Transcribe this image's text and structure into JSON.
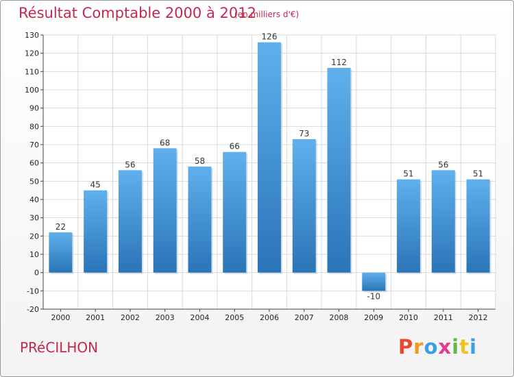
{
  "chart_data": {
    "type": "bar",
    "title": "Résultat Comptable 2000 à 2012",
    "subtitle": "(en milliers d'€)",
    "categories": [
      "2000",
      "2001",
      "2002",
      "2003",
      "2004",
      "2005",
      "2006",
      "2007",
      "2008",
      "2009",
      "2010",
      "2011",
      "2012"
    ],
    "values": [
      22,
      45,
      56,
      68,
      58,
      66,
      126,
      73,
      112,
      -10,
      51,
      56,
      51
    ],
    "value_labels": [
      "22",
      "45",
      "56",
      "68",
      "58",
      "66",
      "126",
      "73",
      "112",
      "-10",
      "51",
      "56",
      "51"
    ],
    "ylim": [
      -20,
      130
    ],
    "yticks": [
      -20,
      -10,
      0,
      10,
      20,
      30,
      40,
      50,
      60,
      70,
      80,
      90,
      100,
      110,
      120,
      130
    ],
    "grid": true,
    "xlabel": "",
    "ylabel": ""
  },
  "footer": {
    "place": "PRéCILHON",
    "brand_letters": [
      "P",
      "r",
      "o",
      "x",
      "i",
      "t",
      "i"
    ]
  },
  "colors": {
    "title": "#c4284f",
    "bar_top": "#5fb0ec",
    "bar_bottom": "#2a74b8",
    "grid": "#d8d8d8",
    "brand": [
      "#e8492f",
      "#f19a1f",
      "#3aa1e0",
      "#e43b8c",
      "#64b843",
      "#f0c21c",
      "#3aa1e0"
    ]
  }
}
